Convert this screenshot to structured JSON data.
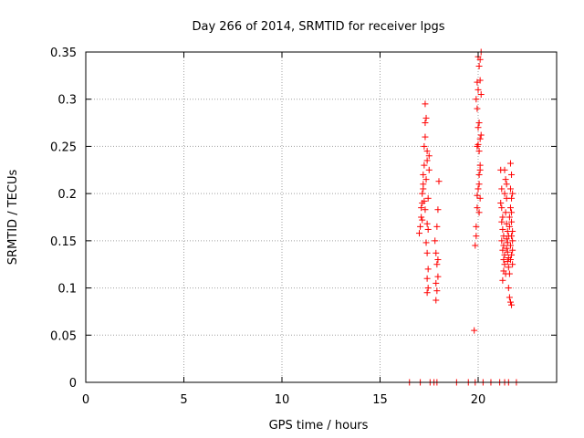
{
  "chart_data": {
    "type": "scatter",
    "title": "Day 266 of 2014, SRMTID for receiver lpgs",
    "xlabel": "GPS time / hours",
    "ylabel": "SRMTID / TECUs",
    "xlim": [
      0,
      24
    ],
    "ylim": [
      0,
      0.35
    ],
    "xticks": [
      0,
      5,
      10,
      15,
      20
    ],
    "yticks": [
      0,
      0.05,
      0.1,
      0.15,
      0.2,
      0.25,
      0.3,
      0.35
    ],
    "xtick_labels": [
      "0",
      "5",
      "10",
      "15",
      "20"
    ],
    "ytick_labels": [
      "0",
      "0.05",
      "0.1",
      "0.15",
      "0.2",
      "0.25",
      "0.3",
      "0.35"
    ],
    "grid": true,
    "color": "#ff0000",
    "marker": "plus",
    "series": [
      {
        "values": [
          {
            "x": 16.5,
            "y": 0
          },
          {
            "x": 17.05,
            "y": 0
          },
          {
            "x": 17.55,
            "y": 0
          },
          {
            "x": 17.75,
            "y": 0
          },
          {
            "x": 17.9,
            "y": 0
          },
          {
            "x": 18.9,
            "y": 0
          },
          {
            "x": 19.5,
            "y": 0
          },
          {
            "x": 19.85,
            "y": 0
          },
          {
            "x": 20.25,
            "y": 0
          },
          {
            "x": 20.65,
            "y": 0
          },
          {
            "x": 21.1,
            "y": 0
          },
          {
            "x": 21.35,
            "y": 0
          },
          {
            "x": 21.55,
            "y": 0
          },
          {
            "x": 21.95,
            "y": 0
          },
          {
            "x": 17.0,
            "y": 0.158
          },
          {
            "x": 17.05,
            "y": 0.165
          },
          {
            "x": 17.1,
            "y": 0.175
          },
          {
            "x": 17.1,
            "y": 0.185
          },
          {
            "x": 17.15,
            "y": 0.19
          },
          {
            "x": 17.15,
            "y": 0.2
          },
          {
            "x": 17.2,
            "y": 0.21
          },
          {
            "x": 17.2,
            "y": 0.22
          },
          {
            "x": 17.25,
            "y": 0.23
          },
          {
            "x": 17.25,
            "y": 0.25
          },
          {
            "x": 17.3,
            "y": 0.26
          },
          {
            "x": 17.3,
            "y": 0.275
          },
          {
            "x": 17.35,
            "y": 0.28
          },
          {
            "x": 17.3,
            "y": 0.295
          },
          {
            "x": 17.4,
            "y": 0.245
          },
          {
            "x": 17.4,
            "y": 0.235
          },
          {
            "x": 17.35,
            "y": 0.215
          },
          {
            "x": 17.45,
            "y": 0.195
          },
          {
            "x": 17.3,
            "y": 0.183
          },
          {
            "x": 17.4,
            "y": 0.168
          },
          {
            "x": 17.45,
            "y": 0.162
          },
          {
            "x": 17.35,
            "y": 0.148
          },
          {
            "x": 17.4,
            "y": 0.137
          },
          {
            "x": 17.45,
            "y": 0.12
          },
          {
            "x": 17.4,
            "y": 0.11
          },
          {
            "x": 17.45,
            "y": 0.1
          },
          {
            "x": 17.4,
            "y": 0.095
          },
          {
            "x": 17.5,
            "y": 0.225
          },
          {
            "x": 17.2,
            "y": 0.205
          },
          {
            "x": 17.25,
            "y": 0.192
          },
          {
            "x": 17.15,
            "y": 0.172
          },
          {
            "x": 17.5,
            "y": 0.24
          },
          {
            "x": 17.8,
            "y": 0.15
          },
          {
            "x": 17.85,
            "y": 0.137
          },
          {
            "x": 17.9,
            "y": 0.125
          },
          {
            "x": 17.95,
            "y": 0.112
          },
          {
            "x": 17.85,
            "y": 0.105
          },
          {
            "x": 17.9,
            "y": 0.097
          },
          {
            "x": 17.85,
            "y": 0.087
          },
          {
            "x": 17.95,
            "y": 0.183
          },
          {
            "x": 18.0,
            "y": 0.213
          },
          {
            "x": 17.9,
            "y": 0.165
          },
          {
            "x": 17.95,
            "y": 0.13
          },
          {
            "x": 19.8,
            "y": 0.055
          },
          {
            "x": 19.85,
            "y": 0.145
          },
          {
            "x": 19.9,
            "y": 0.155
          },
          {
            "x": 19.9,
            "y": 0.165
          },
          {
            "x": 19.95,
            "y": 0.185
          },
          {
            "x": 19.95,
            "y": 0.198
          },
          {
            "x": 20.0,
            "y": 0.205
          },
          {
            "x": 19.95,
            "y": 0.25
          },
          {
            "x": 20.0,
            "y": 0.252
          },
          {
            "x": 20.05,
            "y": 0.245
          },
          {
            "x": 20.0,
            "y": 0.27
          },
          {
            "x": 20.05,
            "y": 0.275
          },
          {
            "x": 19.95,
            "y": 0.29
          },
          {
            "x": 19.9,
            "y": 0.3
          },
          {
            "x": 20.0,
            "y": 0.31
          },
          {
            "x": 19.95,
            "y": 0.318
          },
          {
            "x": 20.05,
            "y": 0.335
          },
          {
            "x": 20.0,
            "y": 0.345
          },
          {
            "x": 20.1,
            "y": 0.342
          },
          {
            "x": 20.15,
            "y": 0.35
          },
          {
            "x": 20.1,
            "y": 0.32
          },
          {
            "x": 20.15,
            "y": 0.305
          },
          {
            "x": 20.1,
            "y": 0.23
          },
          {
            "x": 20.05,
            "y": 0.22
          },
          {
            "x": 20.1,
            "y": 0.225
          },
          {
            "x": 20.05,
            "y": 0.18
          },
          {
            "x": 20.1,
            "y": 0.258
          },
          {
            "x": 20.15,
            "y": 0.262
          },
          {
            "x": 20.05,
            "y": 0.21
          },
          {
            "x": 20.1,
            "y": 0.195
          },
          {
            "x": 21.15,
            "y": 0.225
          },
          {
            "x": 21.2,
            "y": 0.205
          },
          {
            "x": 21.15,
            "y": 0.19
          },
          {
            "x": 21.2,
            "y": 0.185
          },
          {
            "x": 21.25,
            "y": 0.175
          },
          {
            "x": 21.2,
            "y": 0.17
          },
          {
            "x": 21.25,
            "y": 0.162
          },
          {
            "x": 21.3,
            "y": 0.155
          },
          {
            "x": 21.2,
            "y": 0.15
          },
          {
            "x": 21.3,
            "y": 0.145
          },
          {
            "x": 21.25,
            "y": 0.14
          },
          {
            "x": 21.35,
            "y": 0.135
          },
          {
            "x": 21.3,
            "y": 0.13
          },
          {
            "x": 21.35,
            "y": 0.125
          },
          {
            "x": 21.3,
            "y": 0.118
          },
          {
            "x": 21.4,
            "y": 0.115
          },
          {
            "x": 21.25,
            "y": 0.108
          },
          {
            "x": 21.35,
            "y": 0.225
          },
          {
            "x": 21.4,
            "y": 0.215
          },
          {
            "x": 21.45,
            "y": 0.21
          },
          {
            "x": 21.35,
            "y": 0.2
          },
          {
            "x": 21.45,
            "y": 0.195
          },
          {
            "x": 21.4,
            "y": 0.18
          },
          {
            "x": 21.45,
            "y": 0.168
          },
          {
            "x": 21.5,
            "y": 0.16
          },
          {
            "x": 21.45,
            "y": 0.152
          },
          {
            "x": 21.5,
            "y": 0.148
          },
          {
            "x": 21.45,
            "y": 0.142
          },
          {
            "x": 21.5,
            "y": 0.138
          },
          {
            "x": 21.55,
            "y": 0.132
          },
          {
            "x": 21.5,
            "y": 0.128
          },
          {
            "x": 21.55,
            "y": 0.122
          },
          {
            "x": 21.6,
            "y": 0.115
          },
          {
            "x": 21.55,
            "y": 0.1
          },
          {
            "x": 21.6,
            "y": 0.09
          },
          {
            "x": 21.65,
            "y": 0.085
          },
          {
            "x": 21.7,
            "y": 0.082
          },
          {
            "x": 21.6,
            "y": 0.175
          },
          {
            "x": 21.65,
            "y": 0.185
          },
          {
            "x": 21.7,
            "y": 0.195
          },
          {
            "x": 21.65,
            "y": 0.205
          },
          {
            "x": 21.7,
            "y": 0.22
          },
          {
            "x": 21.65,
            "y": 0.232
          },
          {
            "x": 21.75,
            "y": 0.2
          },
          {
            "x": 21.7,
            "y": 0.17
          },
          {
            "x": 21.75,
            "y": 0.16
          },
          {
            "x": 21.7,
            "y": 0.155
          },
          {
            "x": 21.75,
            "y": 0.15
          },
          {
            "x": 21.65,
            "y": 0.145
          },
          {
            "x": 21.75,
            "y": 0.14
          },
          {
            "x": 21.7,
            "y": 0.135
          },
          {
            "x": 21.65,
            "y": 0.13
          },
          {
            "x": 21.75,
            "y": 0.125
          },
          {
            "x": 21.7,
            "y": 0.18
          },
          {
            "x": 21.6,
            "y": 0.165
          },
          {
            "x": 21.55,
            "y": 0.155
          }
        ]
      }
    ]
  }
}
